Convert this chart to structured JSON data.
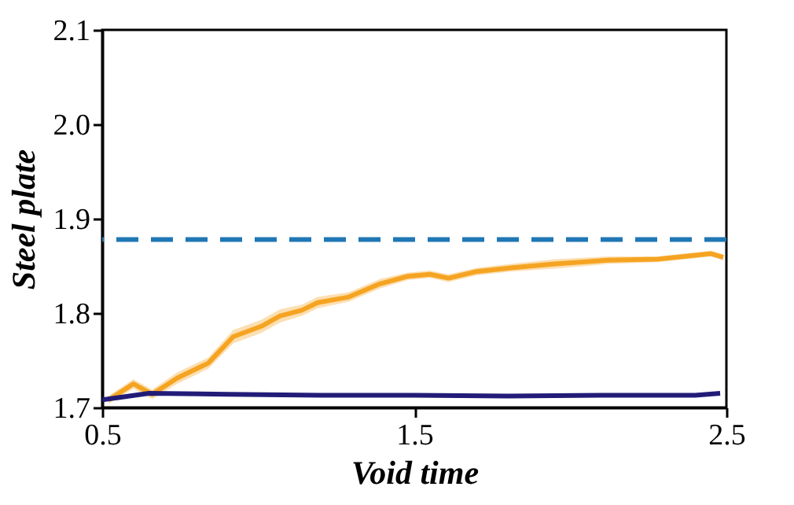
{
  "chart_data": {
    "type": "line",
    "xlabel": "Void time",
    "ylabel": "Steel plate",
    "xlim": [
      0.5,
      2.5
    ],
    "xticks": [
      0.5,
      1.5,
      2.5
    ],
    "ylim": [
      1.7,
      2.1
    ],
    "yticks": [
      1.7,
      1.8,
      1.9,
      {
        "value": 2,
        "label": "2.0"
      },
      2.1
    ],
    "series": [
      {
        "color": "#f5a422",
        "x": [
          0.52,
          0.6,
          0.66,
          0.74,
          0.84,
          0.92,
          1.01,
          1.07,
          1.14,
          1.19,
          1.29,
          1.39,
          1.48,
          1.55,
          1.61,
          1.7,
          1.81,
          1.95,
          2.12,
          2.28,
          2.45,
          2.49
        ],
        "values": [
          1.708,
          1.725,
          1.714,
          1.731,
          1.747,
          1.775,
          1.786,
          1.797,
          1.803,
          1.811,
          1.817,
          1.831,
          1.839,
          1.841,
          1.837,
          1.844,
          1.848,
          1.852,
          1.856,
          1.857,
          1.863,
          1.859
        ],
        "lower": [
          1.704,
          1.72,
          1.709,
          1.725,
          1.741,
          1.768,
          1.779,
          1.79,
          1.797,
          1.805,
          1.812,
          1.826,
          1.835,
          1.837,
          1.833,
          1.84,
          1.844,
          1.847,
          1.852,
          1.854,
          1.86,
          1.856
        ],
        "upper": [
          1.712,
          1.73,
          1.719,
          1.737,
          1.753,
          1.782,
          1.793,
          1.804,
          1.809,
          1.817,
          1.822,
          1.836,
          1.843,
          1.845,
          1.841,
          1.848,
          1.852,
          1.857,
          1.86,
          1.86,
          1.866,
          1.862
        ]
      },
      {
        "color": "#221c78",
        "x": [
          0.5,
          0.65,
          0.9,
          1.2,
          1.5,
          1.8,
          2.1,
          2.4,
          2.48
        ],
        "values": [
          1.708,
          1.715,
          1.714,
          1.713,
          1.713,
          1.712,
          1.713,
          1.713,
          1.715
        ]
      }
    ],
    "ref_lines": [
      {
        "axis": "y",
        "value": 1.878,
        "color": "#1f77b4",
        "line_style": "dashed"
      }
    ],
    "line_style": "solid",
    "grid": false,
    "legend": false
  }
}
